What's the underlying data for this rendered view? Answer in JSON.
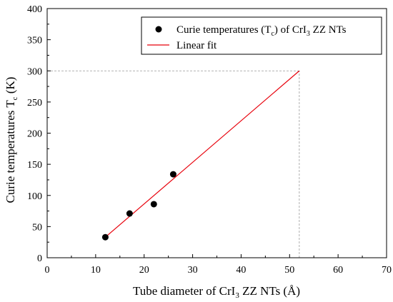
{
  "chart_data": {
    "type": "scatter",
    "xlabel": {
      "pre": "Tube diameter of CrI",
      "sub": "3",
      "post": " ZZ NTs (Å)"
    },
    "ylabel": {
      "pre": "Curie temperatures T",
      "sub": "c",
      "post": " (K)"
    },
    "xlim": [
      0,
      70
    ],
    "ylim": [
      0,
      400
    ],
    "xticks": [
      "0",
      "10",
      "20",
      "30",
      "40",
      "50",
      "60",
      "70"
    ],
    "yticks": [
      "0",
      "50",
      "100",
      "150",
      "200",
      "250",
      "300",
      "350",
      "400"
    ],
    "grid": false,
    "legend_position": "top-right",
    "series": [
      {
        "name": {
          "p1": "Curie temperatures (T",
          "s1": "c",
          "p2": ")  of CrI",
          "s2": "3",
          "p3": " ZZ NTs"
        },
        "kind": "scatter",
        "color": "#000000",
        "points": [
          [
            12,
            33
          ],
          [
            17,
            71
          ],
          [
            22,
            86
          ],
          [
            26,
            134
          ]
        ]
      },
      {
        "name": "Linear fit",
        "kind": "line",
        "color": "#e8000b",
        "points": [
          [
            12,
            33
          ],
          [
            52,
            300
          ]
        ]
      }
    ],
    "reference_lines": [
      {
        "orientation": "horizontal",
        "value": 300,
        "from": 0,
        "to": 52
      },
      {
        "orientation": "vertical",
        "value": 52,
        "from": 0,
        "to": 300
      }
    ]
  }
}
